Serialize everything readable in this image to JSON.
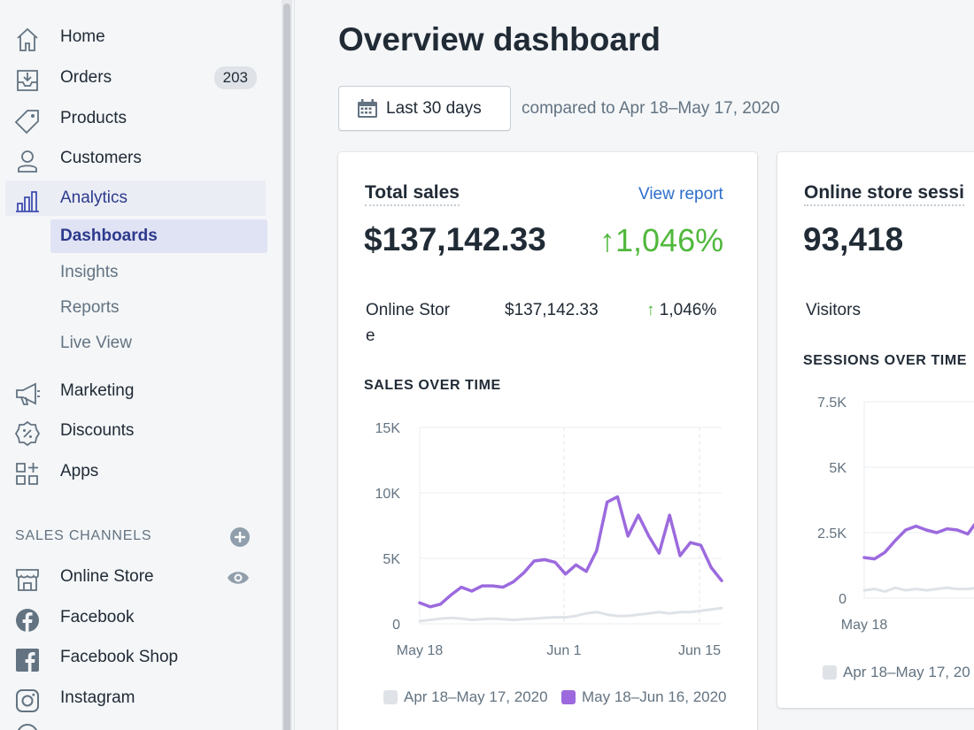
{
  "sidebar": {
    "items": [
      {
        "label": "Home",
        "icon": "home-icon"
      },
      {
        "label": "Orders",
        "icon": "orders-icon",
        "badge": "203"
      },
      {
        "label": "Products",
        "icon": "tag-icon"
      },
      {
        "label": "Customers",
        "icon": "person-icon"
      },
      {
        "label": "Analytics",
        "icon": "bar-chart-icon"
      },
      {
        "label": "Marketing",
        "icon": "megaphone-icon"
      },
      {
        "label": "Discounts",
        "icon": "discount-icon"
      },
      {
        "label": "Apps",
        "icon": "apps-icon"
      }
    ],
    "analytics_sub": [
      {
        "label": "Dashboards"
      },
      {
        "label": "Insights"
      },
      {
        "label": "Reports"
      },
      {
        "label": "Live View"
      }
    ],
    "sales_channels_heading": "SALES CHANNELS",
    "channels": [
      {
        "label": "Online Store",
        "icon": "store-icon"
      },
      {
        "label": "Facebook",
        "icon": "facebook-icon"
      },
      {
        "label": "Facebook Shop",
        "icon": "facebook-shop-icon"
      },
      {
        "label": "Instagram",
        "icon": "instagram-icon"
      }
    ]
  },
  "main": {
    "title": "Overview dashboard",
    "date_range": "Last 30 days",
    "compared": "compared to Apr 18–May 17, 2020"
  },
  "sales_card": {
    "title": "Total sales",
    "view_report": "View report",
    "total": "$137,142.33",
    "change": "1,046%",
    "row_label_1": "Online Stor",
    "row_label_2": "e",
    "row_value": "$137,142.33",
    "row_change": "1,046%",
    "chart_heading": "SALES OVER TIME",
    "legend_prev": "Apr 18–May 17, 2020",
    "legend_curr": "May 18–Jun 16, 2020"
  },
  "sessions_card": {
    "title": "Online store sessi",
    "total": "93,418",
    "row_label": "Visitors",
    "chart_heading": "SESSIONS OVER TIME",
    "legend_prev": "Apr 18–May 17, 20"
  },
  "colors": {
    "current": "#9c6ade",
    "previous": "#dfe3e8",
    "positive": "#50b83c",
    "link": "#2c6ecb"
  },
  "chart_data": [
    {
      "type": "line",
      "title": "SALES OVER TIME",
      "x_ticks": [
        "May 18",
        "Jun 1",
        "Jun 15"
      ],
      "y_ticks": [
        "0",
        "5K",
        "10K",
        "15K"
      ],
      "ylim": [
        0,
        15000
      ],
      "legend": "bottom",
      "series": [
        {
          "name": "Apr 18–May 17, 2020",
          "color": "#dfe3e8",
          "values": [
            200,
            300,
            400,
            450,
            400,
            300,
            350,
            400,
            350,
            300,
            350,
            400,
            450,
            500,
            500,
            600,
            800,
            900,
            700,
            600,
            600,
            700,
            800,
            900,
            800,
            900,
            900,
            1000,
            1100,
            1200
          ]
        },
        {
          "name": "May 18–Jun 16, 2020",
          "color": "#9c6ade",
          "values": [
            1600,
            1300,
            1500,
            2200,
            2800,
            2500,
            2900,
            2900,
            2800,
            3200,
            3900,
            4800,
            4900,
            4700,
            3800,
            4500,
            4000,
            5600,
            9300,
            9700,
            6700,
            8300,
            6700,
            5400,
            8300,
            5200,
            6200,
            6000,
            4300,
            3300
          ]
        }
      ]
    },
    {
      "type": "line",
      "title": "SESSIONS OVER TIME",
      "x_ticks": [
        "May 18"
      ],
      "y_ticks": [
        "0",
        "2.5K",
        "5K",
        "7.5K"
      ],
      "ylim": [
        0,
        7500
      ],
      "legend": "bottom",
      "series": [
        {
          "name": "Apr 18–May 17, 20",
          "color": "#dfe3e8",
          "values": [
            300,
            350,
            250,
            400,
            300,
            350,
            300,
            350,
            400,
            350,
            350,
            400,
            350,
            450
          ]
        },
        {
          "color": "#9c6ade",
          "values": [
            1550,
            1500,
            1750,
            2200,
            2600,
            2750,
            2600,
            2500,
            2650,
            2600,
            2450,
            3000
          ]
        }
      ]
    }
  ]
}
